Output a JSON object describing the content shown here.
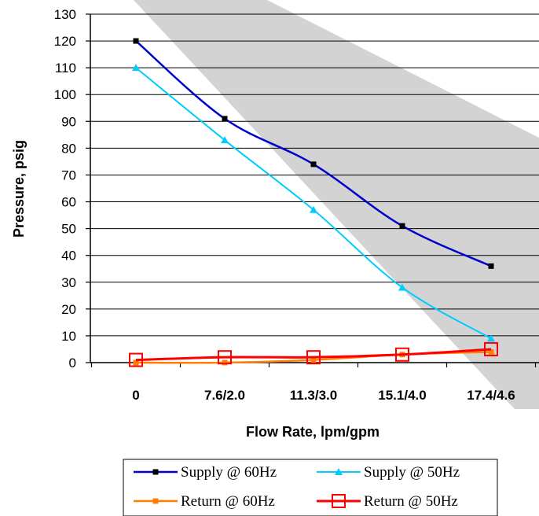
{
  "chart_data": {
    "type": "line",
    "xlabel": "Flow Rate, lpm/gpm",
    "ylabel": "Pressure, psig",
    "categories": [
      "0",
      "7.6/2.0",
      "11.3/3.0",
      "15.1/4.0",
      "17.4/4.6"
    ],
    "ylim": [
      0,
      130
    ],
    "yticks": [
      0,
      10,
      20,
      30,
      40,
      50,
      60,
      70,
      80,
      90,
      100,
      110,
      120,
      130
    ],
    "grid": true,
    "legend_position": "bottom",
    "series": [
      {
        "name": "Supply @ 60Hz",
        "values": [
          120,
          91,
          74,
          51,
          36
        ],
        "color": "#0000cc",
        "marker": "square"
      },
      {
        "name": "Supply @ 50Hz",
        "values": [
          110,
          83,
          57,
          28,
          9
        ],
        "color": "#00ccff",
        "marker": "triangle"
      },
      {
        "name": "Return @ 60Hz",
        "values": [
          0,
          0,
          1,
          3,
          4
        ],
        "color": "#ff7f00",
        "marker": "square"
      },
      {
        "name": "Return @ 50Hz",
        "values": [
          1,
          2,
          2,
          3,
          5
        ],
        "color": "#ff0000",
        "marker": "open-square"
      }
    ]
  }
}
